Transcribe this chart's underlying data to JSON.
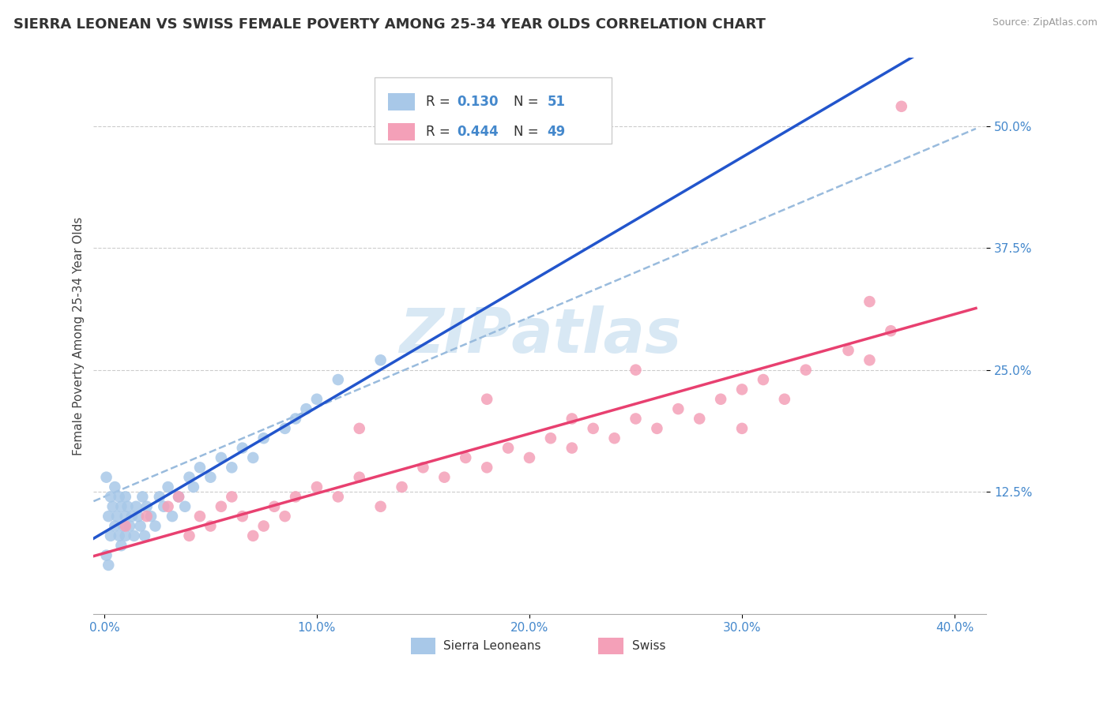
{
  "title": "SIERRA LEONEAN VS SWISS FEMALE POVERTY AMONG 25-34 YEAR OLDS CORRELATION CHART",
  "source": "Source: ZipAtlas.com",
  "ylabel": "Female Poverty Among 25-34 Year Olds",
  "x_tick_labels": [
    "0.0%",
    "10.0%",
    "20.0%",
    "30.0%",
    "40.0%"
  ],
  "x_tick_values": [
    0.0,
    0.1,
    0.2,
    0.3,
    0.4
  ],
  "y_tick_labels": [
    "12.5%",
    "25.0%",
    "37.5%",
    "50.0%"
  ],
  "y_tick_values": [
    0.125,
    0.25,
    0.375,
    0.5
  ],
  "xlim": [
    -0.005,
    0.415
  ],
  "ylim": [
    0.0,
    0.57
  ],
  "r_sierra": 0.13,
  "n_sierra": 51,
  "r_swiss": 0.444,
  "n_swiss": 49,
  "sierra_color": "#a8c8e8",
  "swiss_color": "#f4a0b8",
  "sierra_line_color": "#2255cc",
  "swiss_line_color": "#e84070",
  "dashed_line_color": "#99bbdd",
  "watermark_color": "#c8dff0",
  "background_color": "#ffffff",
  "grid_color": "#cccccc",
  "title_fontsize": 13,
  "axis_label_fontsize": 11,
  "tick_fontsize": 11,
  "legend_fontsize": 12,
  "sierra_x": [
    0.001,
    0.002,
    0.003,
    0.003,
    0.004,
    0.005,
    0.005,
    0.006,
    0.007,
    0.007,
    0.008,
    0.008,
    0.009,
    0.01,
    0.01,
    0.01,
    0.011,
    0.012,
    0.013,
    0.014,
    0.015,
    0.016,
    0.017,
    0.018,
    0.019,
    0.02,
    0.022,
    0.024,
    0.026,
    0.028,
    0.03,
    0.032,
    0.035,
    0.038,
    0.04,
    0.042,
    0.045,
    0.05,
    0.055,
    0.06,
    0.065,
    0.07,
    0.075,
    0.085,
    0.09,
    0.095,
    0.1,
    0.11,
    0.13,
    0.001,
    0.002
  ],
  "sierra_y": [
    0.14,
    0.1,
    0.12,
    0.08,
    0.11,
    0.09,
    0.13,
    0.1,
    0.08,
    0.12,
    0.07,
    0.11,
    0.09,
    0.1,
    0.08,
    0.12,
    0.11,
    0.09,
    0.1,
    0.08,
    0.11,
    0.1,
    0.09,
    0.12,
    0.08,
    0.11,
    0.1,
    0.09,
    0.12,
    0.11,
    0.13,
    0.1,
    0.12,
    0.11,
    0.14,
    0.13,
    0.15,
    0.14,
    0.16,
    0.15,
    0.17,
    0.16,
    0.18,
    0.19,
    0.2,
    0.21,
    0.22,
    0.24,
    0.26,
    0.06,
    0.05
  ],
  "swiss_x": [
    0.01,
    0.02,
    0.03,
    0.035,
    0.04,
    0.045,
    0.05,
    0.055,
    0.06,
    0.065,
    0.07,
    0.075,
    0.08,
    0.085,
    0.09,
    0.1,
    0.11,
    0.12,
    0.13,
    0.14,
    0.15,
    0.16,
    0.17,
    0.18,
    0.19,
    0.2,
    0.21,
    0.22,
    0.23,
    0.24,
    0.25,
    0.26,
    0.27,
    0.28,
    0.29,
    0.3,
    0.31,
    0.32,
    0.33,
    0.35,
    0.36,
    0.37,
    0.12,
    0.18,
    0.22,
    0.25,
    0.3,
    0.36,
    0.375
  ],
  "swiss_y": [
    0.09,
    0.1,
    0.11,
    0.12,
    0.08,
    0.1,
    0.09,
    0.11,
    0.12,
    0.1,
    0.08,
    0.09,
    0.11,
    0.1,
    0.12,
    0.13,
    0.12,
    0.14,
    0.11,
    0.13,
    0.15,
    0.14,
    0.16,
    0.15,
    0.17,
    0.16,
    0.18,
    0.17,
    0.19,
    0.18,
    0.2,
    0.19,
    0.21,
    0.2,
    0.22,
    0.23,
    0.24,
    0.22,
    0.25,
    0.27,
    0.26,
    0.29,
    0.19,
    0.22,
    0.2,
    0.25,
    0.19,
    0.32,
    0.52
  ]
}
